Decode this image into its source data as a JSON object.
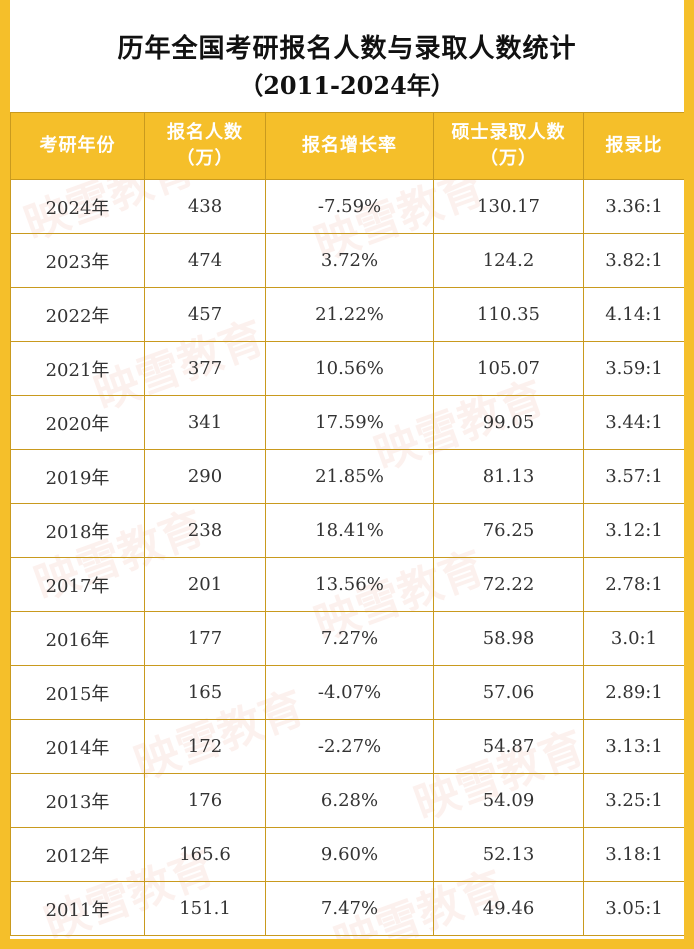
{
  "title": {
    "line1": "历年全国考研报名人数与录取人数统计",
    "line2": "（2011-2024年）"
  },
  "watermark": "映雪教育",
  "columns": [
    {
      "line1": "考研年份",
      "line2": ""
    },
    {
      "line1": "报名人数",
      "line2": "（万）"
    },
    {
      "line1": "报名增长率",
      "line2": ""
    },
    {
      "line1": "硕士录取人数",
      "line2": "（万）"
    },
    {
      "line1": "报录比",
      "line2": ""
    }
  ],
  "rows": [
    [
      "2024年",
      "438",
      "-7.59%",
      "130.17",
      "3.36:1"
    ],
    [
      "2023年",
      "474",
      "3.72%",
      "124.2",
      "3.82:1"
    ],
    [
      "2022年",
      "457",
      "21.22%",
      "110.35",
      "4.14:1"
    ],
    [
      "2021年",
      "377",
      "10.56%",
      "105.07",
      "3.59:1"
    ],
    [
      "2020年",
      "341",
      "17.59%",
      "99.05",
      "3.44:1"
    ],
    [
      "2019年",
      "290",
      "21.85%",
      "81.13",
      "3.57:1"
    ],
    [
      "2018年",
      "238",
      "18.41%",
      "76.25",
      "3.12:1"
    ],
    [
      "2017年",
      "201",
      "13.56%",
      "72.22",
      "2.78:1"
    ],
    [
      "2016年",
      "177",
      "7.27%",
      "58.98",
      "3.0:1"
    ],
    [
      "2015年",
      "165",
      "-4.07%",
      "57.06",
      "2.89:1"
    ],
    [
      "2014年",
      "172",
      "-2.27%",
      "54.87",
      "3.13:1"
    ],
    [
      "2013年",
      "176",
      "6.28%",
      "54.09",
      "3.25:1"
    ],
    [
      "2012年",
      "165.6",
      "9.60%",
      "52.13",
      "3.18:1"
    ],
    [
      "2011年",
      "151.1",
      "7.47%",
      "49.46",
      "3.05:1"
    ]
  ],
  "colors": {
    "accent": "#f5bf2a",
    "border": "#c99a1e",
    "header_text": "#ffffff"
  }
}
